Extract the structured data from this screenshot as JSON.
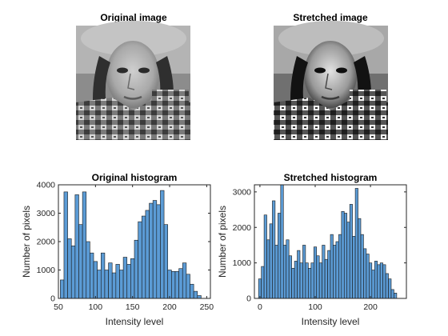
{
  "figure": {
    "images": [
      {
        "title": "Original image",
        "tone": "original"
      },
      {
        "title": "Stretched image",
        "tone": "stretched"
      }
    ]
  },
  "chart_data": [
    {
      "type": "bar",
      "title": "Original histogram",
      "xlabel": "Intensity level",
      "ylabel": "Number of pixels",
      "xlim": [
        50,
        255
      ],
      "ylim": [
        0,
        4000
      ],
      "xticks": [
        50,
        100,
        150,
        200,
        250
      ],
      "yticks": [
        0,
        1000,
        2000,
        3000,
        4000
      ],
      "bin_width": 5,
      "bar_color": "#5b9bd5",
      "edge_color": "#1a1a1a",
      "bins": [
        {
          "x": 55,
          "v": 650
        },
        {
          "x": 60,
          "v": 3750
        },
        {
          "x": 65,
          "v": 2100
        },
        {
          "x": 70,
          "v": 1850
        },
        {
          "x": 75,
          "v": 3650
        },
        {
          "x": 80,
          "v": 2600
        },
        {
          "x": 85,
          "v": 3750
        },
        {
          "x": 90,
          "v": 2000
        },
        {
          "x": 95,
          "v": 1600
        },
        {
          "x": 100,
          "v": 1300
        },
        {
          "x": 105,
          "v": 1000
        },
        {
          "x": 110,
          "v": 1600
        },
        {
          "x": 115,
          "v": 1000
        },
        {
          "x": 120,
          "v": 1250
        },
        {
          "x": 125,
          "v": 900
        },
        {
          "x": 130,
          "v": 1200
        },
        {
          "x": 135,
          "v": 1000
        },
        {
          "x": 140,
          "v": 1450
        },
        {
          "x": 145,
          "v": 1200
        },
        {
          "x": 150,
          "v": 1400
        },
        {
          "x": 155,
          "v": 2050
        },
        {
          "x": 160,
          "v": 2700
        },
        {
          "x": 165,
          "v": 2900
        },
        {
          "x": 170,
          "v": 3100
        },
        {
          "x": 175,
          "v": 3350
        },
        {
          "x": 180,
          "v": 3450
        },
        {
          "x": 185,
          "v": 3300
        },
        {
          "x": 190,
          "v": 3800
        },
        {
          "x": 195,
          "v": 2600
        },
        {
          "x": 200,
          "v": 1000
        },
        {
          "x": 205,
          "v": 950
        },
        {
          "x": 210,
          "v": 950
        },
        {
          "x": 215,
          "v": 1050
        },
        {
          "x": 220,
          "v": 1250
        },
        {
          "x": 225,
          "v": 850
        },
        {
          "x": 230,
          "v": 500
        },
        {
          "x": 235,
          "v": 250
        },
        {
          "x": 240,
          "v": 100
        }
      ]
    },
    {
      "type": "bar",
      "title": "Stretched histogram",
      "xlabel": "Intensity level",
      "ylabel": "Number of pixels",
      "xlim": [
        -10,
        265
      ],
      "ylim": [
        0,
        3200
      ],
      "xticks": [
        0,
        100,
        200
      ],
      "yticks": [
        0,
        1000,
        2000,
        3000
      ],
      "bin_width": 5,
      "bar_color": "#5b9bd5",
      "edge_color": "#1a1a1a",
      "bins": [
        {
          "x": 0,
          "v": 550
        },
        {
          "x": 5,
          "v": 900
        },
        {
          "x": 10,
          "v": 2350
        },
        {
          "x": 15,
          "v": 1650
        },
        {
          "x": 20,
          "v": 2100
        },
        {
          "x": 25,
          "v": 2750
        },
        {
          "x": 30,
          "v": 1500
        },
        {
          "x": 35,
          "v": 2400
        },
        {
          "x": 40,
          "v": 3200
        },
        {
          "x": 45,
          "v": 1500
        },
        {
          "x": 50,
          "v": 1650
        },
        {
          "x": 55,
          "v": 1200
        },
        {
          "x": 60,
          "v": 850
        },
        {
          "x": 65,
          "v": 1050
        },
        {
          "x": 70,
          "v": 1350
        },
        {
          "x": 75,
          "v": 1000
        },
        {
          "x": 80,
          "v": 1500
        },
        {
          "x": 85,
          "v": 1000
        },
        {
          "x": 90,
          "v": 850
        },
        {
          "x": 95,
          "v": 1000
        },
        {
          "x": 100,
          "v": 1450
        },
        {
          "x": 105,
          "v": 1200
        },
        {
          "x": 110,
          "v": 1000
        },
        {
          "x": 115,
          "v": 1500
        },
        {
          "x": 120,
          "v": 1100
        },
        {
          "x": 125,
          "v": 1350
        },
        {
          "x": 130,
          "v": 1800
        },
        {
          "x": 135,
          "v": 1500
        },
        {
          "x": 140,
          "v": 1600
        },
        {
          "x": 145,
          "v": 1800
        },
        {
          "x": 150,
          "v": 2450
        },
        {
          "x": 155,
          "v": 2400
        },
        {
          "x": 160,
          "v": 2150
        },
        {
          "x": 165,
          "v": 2650
        },
        {
          "x": 170,
          "v": 1750
        },
        {
          "x": 175,
          "v": 3100
        },
        {
          "x": 180,
          "v": 2250
        },
        {
          "x": 185,
          "v": 1800
        },
        {
          "x": 190,
          "v": 1400
        },
        {
          "x": 195,
          "v": 1250
        },
        {
          "x": 200,
          "v": 1000
        },
        {
          "x": 205,
          "v": 800
        },
        {
          "x": 210,
          "v": 1050
        },
        {
          "x": 215,
          "v": 950
        },
        {
          "x": 220,
          "v": 1000
        },
        {
          "x": 225,
          "v": 950
        },
        {
          "x": 230,
          "v": 700
        },
        {
          "x": 235,
          "v": 550
        },
        {
          "x": 240,
          "v": 250
        },
        {
          "x": 245,
          "v": 150
        }
      ]
    }
  ]
}
